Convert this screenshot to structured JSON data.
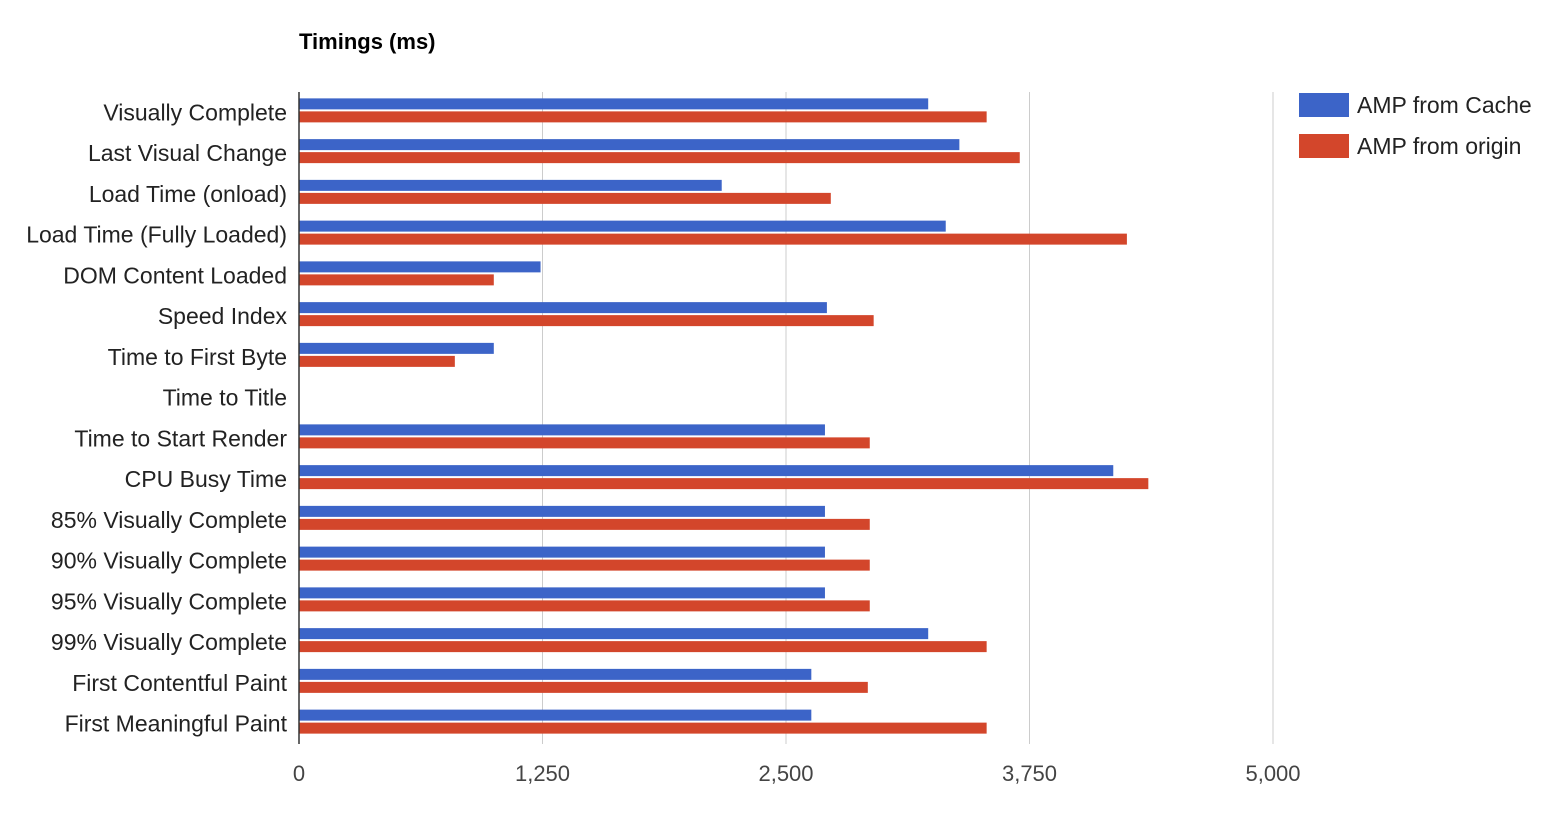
{
  "chart_data": {
    "type": "bar",
    "orientation": "horizontal",
    "title": "Timings (ms)",
    "xlabel": "",
    "ylabel": "",
    "xlim": [
      0,
      5000
    ],
    "ticks": [
      0,
      1250,
      2500,
      3750,
      5000
    ],
    "tick_labels": [
      "0",
      "1,250",
      "2,500",
      "3,750",
      "5,000"
    ],
    "grid": true,
    "legend_position": "top-right",
    "categories": [
      "Visually Complete",
      "Last Visual Change",
      "Load Time (onload)",
      "Load Time (Fully Loaded)",
      "DOM Content Loaded",
      "Speed Index",
      "Time to First Byte",
      "Time to Title",
      "Time to Start Render",
      "CPU Busy Time",
      "85% Visually Complete",
      "90% Visually Complete",
      "95% Visually Complete",
      "99% Visually Complete",
      "First Contentful Paint",
      "First Meaningful Paint"
    ],
    "series": [
      {
        "name": "AMP from Cache",
        "color": "#3c64c8",
        "values": [
          3230,
          3390,
          2170,
          3320,
          1240,
          2710,
          1000,
          0,
          2700,
          4180,
          2700,
          2700,
          2700,
          3230,
          2630,
          2630
        ]
      },
      {
        "name": "AMP from origin",
        "color": "#d3462b",
        "values": [
          3530,
          3700,
          2730,
          4250,
          1000,
          2950,
          800,
          0,
          2930,
          4360,
          2930,
          2930,
          2930,
          3530,
          2920,
          3530
        ]
      }
    ]
  }
}
